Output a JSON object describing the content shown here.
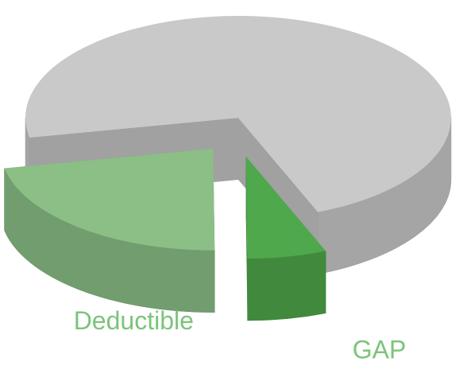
{
  "chart_data": {
    "type": "pie3d",
    "categories": [
      null,
      "Deductible",
      "GAP"
    ],
    "values": [
      72,
      22,
      6
    ],
    "colors": [
      "#c9c9c9",
      "#8bbf86",
      "#4fa84b"
    ],
    "label_color": "#7cc47a",
    "exploded": [
      false,
      true,
      true
    ]
  }
}
